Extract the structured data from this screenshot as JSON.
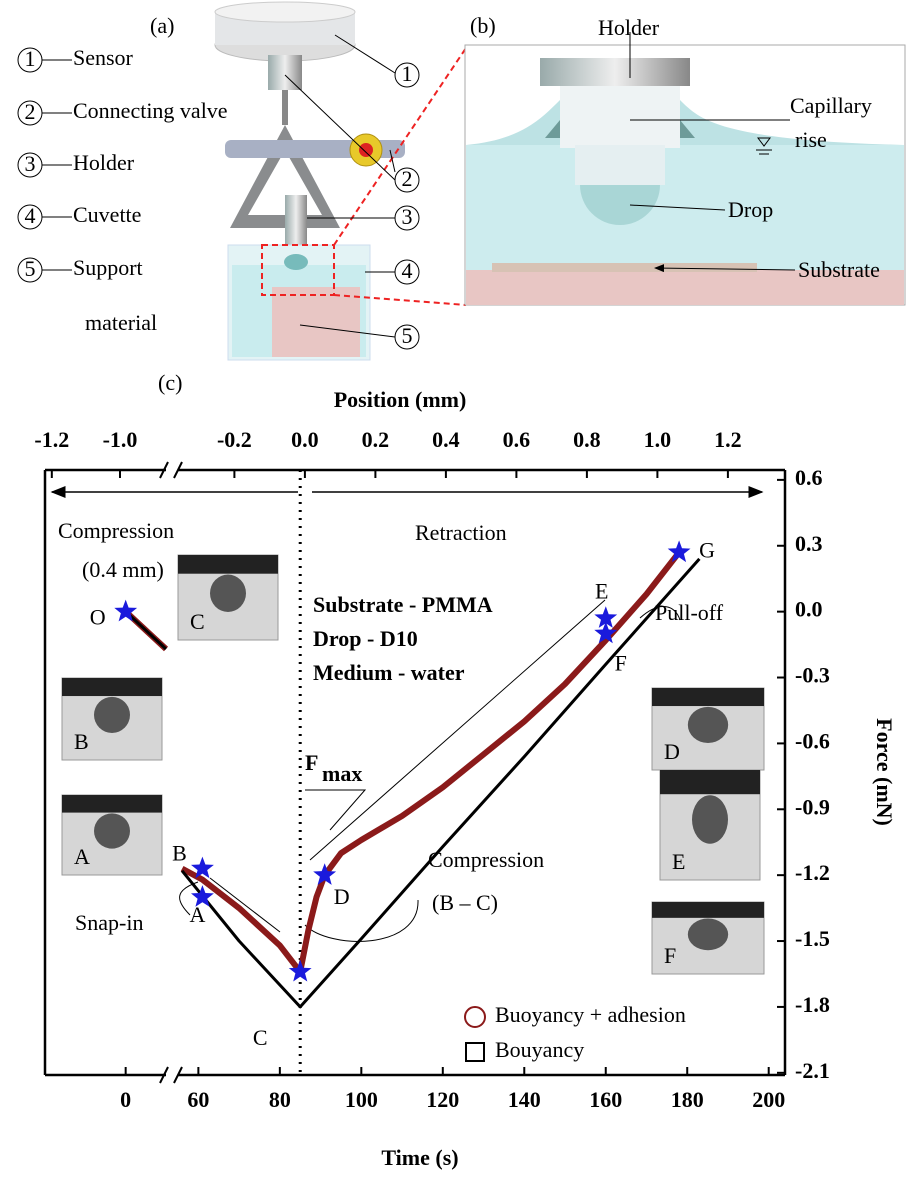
{
  "panel_a": {
    "tag": "(a)",
    "items": [
      {
        "number": "1",
        "label": [
          "Sensor"
        ]
      },
      {
        "number": "2",
        "label": [
          "Connecting valve"
        ]
      },
      {
        "number": "3",
        "label": [
          "Holder"
        ]
      },
      {
        "number": "4",
        "label": [
          "Cuvette"
        ]
      },
      {
        "number": "5",
        "label": [
          "Support",
          "material"
        ]
      }
    ]
  },
  "panel_b": {
    "tag": "(b)",
    "holder": "Holder",
    "capillary": [
      "Capillary",
      "rise"
    ],
    "drop": "Drop",
    "substrate": "Substrate"
  },
  "panel_c": {
    "tag": "(c)"
  },
  "chart_data": {
    "type": "line",
    "x_label": "Time (s)",
    "y_label": "Force (mN)",
    "xlim": [
      -20,
      204
    ],
    "xbreak": [
      10,
      55
    ],
    "xticks": [
      0,
      60,
      80,
      100,
      120,
      140,
      160,
      180,
      200
    ],
    "ylim": [
      -2.11,
      0.645
    ],
    "yticks": [
      0.6,
      0.3,
      {
        "value": 0,
        "label": "0.0"
      },
      -0.3,
      -0.6,
      -0.9,
      -1.2,
      -1.5,
      -1.8,
      -2.1
    ],
    "top_axis": {
      "label": "Position (mm)",
      "lim": [
        -1.22,
        1.362
      ],
      "break": [
        -0.865,
        -0.36
      ],
      "ticks": [
        -1.2,
        {
          "value": -1,
          "label": "-1.0"
        },
        -0.2,
        {
          "value": 0,
          "label": "0.0"
        },
        0.2,
        0.4,
        0.6,
        0.8,
        {
          "value": 1,
          "label": "1.0"
        },
        1.2
      ]
    },
    "series": [
      {
        "name": "Buoyancy + adhesion",
        "color": "#8b1a1a",
        "x": [
          0,
          10,
          null,
          56,
          61,
          70,
          80,
          85,
          87,
          89,
          91,
          95,
          100,
          110,
          120,
          130,
          140,
          150,
          160,
          170,
          178
        ],
        "values": [
          0,
          -0.17,
          null,
          -1.17,
          -1.22,
          -1.35,
          -1.52,
          -1.64,
          -1.45,
          -1.3,
          -1.2,
          -1.1,
          -1.04,
          -0.93,
          -0.8,
          -0.65,
          -0.5,
          -0.33,
          -0.13,
          0.08,
          0.27
        ]
      },
      {
        "name": "Bouyancy",
        "color": "#000000",
        "x": [
          0,
          10,
          null,
          56,
          70,
          85,
          100,
          120,
          140,
          160,
          183
        ],
        "values": [
          0,
          -0.17,
          null,
          -1.18,
          -1.5,
          -1.8,
          -1.49,
          -1.07,
          -0.66,
          -0.24,
          0.24
        ]
      }
    ],
    "points": [
      {
        "label": "O",
        "x": 0,
        "y": 0
      },
      {
        "label": "A",
        "x": 61,
        "y": -1.3
      },
      {
        "label": "B",
        "x": 61,
        "y": -1.17
      },
      {
        "label": "C",
        "x": 85,
        "y": -1.64
      },
      {
        "label": "D",
        "x": 91,
        "y": -1.2
      },
      {
        "label": "E",
        "x": 160,
        "y": -0.03
      },
      {
        "label": "F",
        "x": 160,
        "y": -0.1
      },
      {
        "label": "G",
        "x": 178,
        "y": 0.27
      }
    ],
    "star_color": "#1a1adc",
    "annotations": {
      "compression_left": [
        "Compression",
        "(0.4 mm)"
      ],
      "retraction": "Retraction",
      "conditions": [
        "Substrate - PMMA",
        "Drop - D10",
        "Medium - water"
      ],
      "fmax": {
        "main": "F",
        "sub": "max"
      },
      "compression_bc": [
        "Compression",
        "(B – C)"
      ],
      "snap_in": "Snap-in",
      "pull_off": "Pull-off"
    },
    "insets": [
      "C",
      "B",
      "A",
      "D",
      "E",
      "F"
    ],
    "legend": "lower right"
  }
}
